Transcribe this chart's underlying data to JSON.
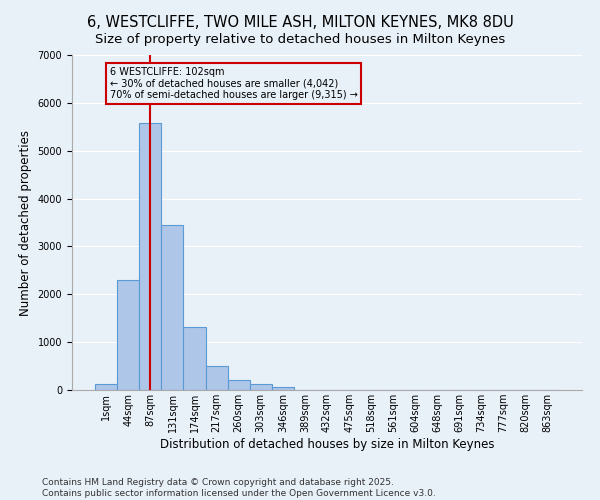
{
  "title": "6, WESTCLIFFE, TWO MILE ASH, MILTON KEYNES, MK8 8DU",
  "subtitle": "Size of property relative to detached houses in Milton Keynes",
  "xlabel": "Distribution of detached houses by size in Milton Keynes",
  "ylabel": "Number of detached properties",
  "categories": [
    "1sqm",
    "44sqm",
    "87sqm",
    "131sqm",
    "174sqm",
    "217sqm",
    "260sqm",
    "303sqm",
    "346sqm",
    "389sqm",
    "432sqm",
    "475sqm",
    "518sqm",
    "561sqm",
    "604sqm",
    "648sqm",
    "691sqm",
    "734sqm",
    "777sqm",
    "820sqm",
    "863sqm"
  ],
  "bar_values": [
    130,
    2300,
    5570,
    3450,
    1310,
    510,
    210,
    120,
    60,
    10,
    0,
    0,
    0,
    0,
    0,
    0,
    0,
    0,
    0,
    0,
    0
  ],
  "bar_color": "#aec6e8",
  "bar_edgecolor": "#5b9bd5",
  "bar_linewidth": 0.8,
  "vline_x": 2,
  "vline_color": "#cc0000",
  "vline_label_title": "6 WESTCLIFFE: 102sqm",
  "vline_label_line1": "← 30% of detached houses are smaller (4,042)",
  "vline_label_line2": "70% of semi-detached houses are larger (9,315) →",
  "annotation_box_color": "#cc0000",
  "ylim": [
    0,
    7000
  ],
  "yticks": [
    0,
    1000,
    2000,
    3000,
    4000,
    5000,
    6000,
    7000
  ],
  "background_color": "#e8f0f8",
  "grid_color": "#ffffff",
  "footer_line1": "Contains HM Land Registry data © Crown copyright and database right 2025.",
  "footer_line2": "Contains public sector information licensed under the Open Government Licence v3.0.",
  "title_fontsize": 10.5,
  "subtitle_fontsize": 9.5,
  "axis_label_fontsize": 8.5,
  "tick_fontsize": 7,
  "footer_fontsize": 6.5
}
